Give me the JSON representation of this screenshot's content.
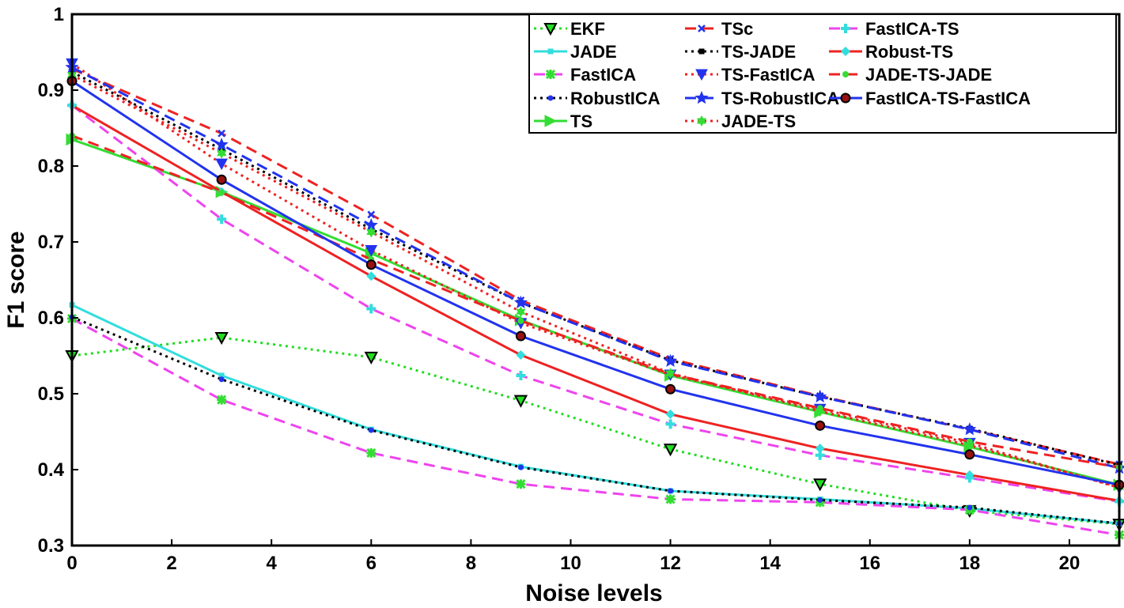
{
  "chart_data": {
    "type": "line",
    "xlabel": "Noise levels",
    "ylabel": "F1 score",
    "xlim": [
      0,
      21
    ],
    "ylim": [
      0.3,
      1
    ],
    "xticks": [
      0,
      2,
      4,
      6,
      8,
      10,
      12,
      14,
      16,
      18,
      20
    ],
    "yticks": [
      0.3,
      0.4,
      0.5,
      0.6,
      0.7,
      0.8,
      0.9,
      1
    ],
    "ytick_labels": [
      "0.3",
      "0.4",
      "0.5",
      "0.6",
      "0.7",
      "0.8",
      "0.9",
      "1"
    ],
    "grid": false,
    "legend_position": "top-right",
    "x": [
      0,
      3,
      6,
      9,
      12,
      15,
      18,
      21
    ],
    "series": [
      {
        "name": "EKF",
        "color": "#22dd22",
        "dash": "dotted",
        "marker": "triangle-down-hollow",
        "values": [
          0.55,
          0.574,
          0.548,
          0.491,
          0.427,
          0.381,
          0.346,
          0.328
        ]
      },
      {
        "name": "JADE",
        "color": "#33dddd",
        "dash": "solid",
        "marker": "square",
        "values": [
          0.617,
          0.524,
          0.453,
          0.404,
          0.372,
          0.361,
          0.349,
          0.329
        ]
      },
      {
        "name": "FastICA",
        "color": "#ee44ee",
        "dash": "dashed",
        "marker": "asterisk",
        "values": [
          0.599,
          0.492,
          0.422,
          0.381,
          0.361,
          0.357,
          0.347,
          0.314
        ]
      },
      {
        "name": "RobustICA",
        "color": "#000000",
        "dash": "dotted",
        "marker": "dot",
        "values": [
          0.601,
          0.519,
          0.452,
          0.403,
          0.372,
          0.36,
          0.35,
          0.329
        ]
      },
      {
        "name": "TS",
        "color": "#33dd33",
        "dash": "solid",
        "marker": "triangle-right",
        "values": [
          0.835,
          0.766,
          0.685,
          0.597,
          0.524,
          0.476,
          0.43,
          0.38
        ]
      },
      {
        "name": "TSc",
        "color": "#ee2222",
        "dash": "dashed",
        "marker": "x",
        "values": [
          0.928,
          0.843,
          0.736,
          0.623,
          0.546,
          0.497,
          0.453,
          0.407
        ]
      },
      {
        "name": "TS-JADE",
        "color": "#000000",
        "dash": "dotted",
        "marker": "square",
        "values": [
          0.924,
          0.822,
          0.717,
          0.62,
          0.544,
          0.496,
          0.454,
          0.406
        ]
      },
      {
        "name": "TS-FastICA",
        "color": "#ee2222",
        "dash": "dotted",
        "marker": "triangle-down",
        "values": [
          0.935,
          0.803,
          0.689,
          0.593,
          0.525,
          0.48,
          0.435,
          0.376
        ]
      },
      {
        "name": "TS-RobustICA",
        "color": "#2233ee",
        "dash": "dashed",
        "marker": "star",
        "values": [
          0.93,
          0.828,
          0.722,
          0.62,
          0.543,
          0.496,
          0.453,
          0.402
        ]
      },
      {
        "name": "JADE-TS",
        "color": "#ee2222",
        "dash": "dotted",
        "marker": "hexagram",
        "values": [
          0.92,
          0.817,
          0.713,
          0.608,
          0.527,
          0.477,
          0.432,
          0.377
        ]
      },
      {
        "name": "FastICA-TS",
        "color": "#ee44ee",
        "dash": "dashed",
        "marker": "cross",
        "values": [
          0.88,
          0.73,
          0.612,
          0.524,
          0.46,
          0.419,
          0.389,
          0.358
        ]
      },
      {
        "name": "Robust-TS",
        "color": "#ee2222",
        "dash": "solid",
        "marker": "diamond",
        "values": [
          0.88,
          0.766,
          0.655,
          0.551,
          0.473,
          0.428,
          0.393,
          0.359
        ]
      },
      {
        "name": "JADE-TS-JADE",
        "color": "#ee2222",
        "dash": "dashed",
        "marker": "dot-green",
        "values": [
          0.84,
          0.765,
          0.677,
          0.596,
          0.526,
          0.481,
          0.437,
          0.403
        ]
      },
      {
        "name": "FastICA-TS-FastICA",
        "color": "#2233ee",
        "dash": "solid",
        "marker": "circle-dark",
        "values": [
          0.912,
          0.782,
          0.67,
          0.576,
          0.506,
          0.458,
          0.42,
          0.38
        ]
      }
    ],
    "legend_columns": [
      [
        "EKF",
        "JADE",
        "FastICA",
        "RobustICA",
        "TS"
      ],
      [
        "TSc",
        "TS-JADE",
        "TS-FastICA",
        "TS-RobustICA",
        "JADE-TS"
      ],
      [
        "FastICA-TS",
        "Robust-TS",
        "JADE-TS-JADE",
        "FastICA-TS-FastICA"
      ]
    ]
  }
}
